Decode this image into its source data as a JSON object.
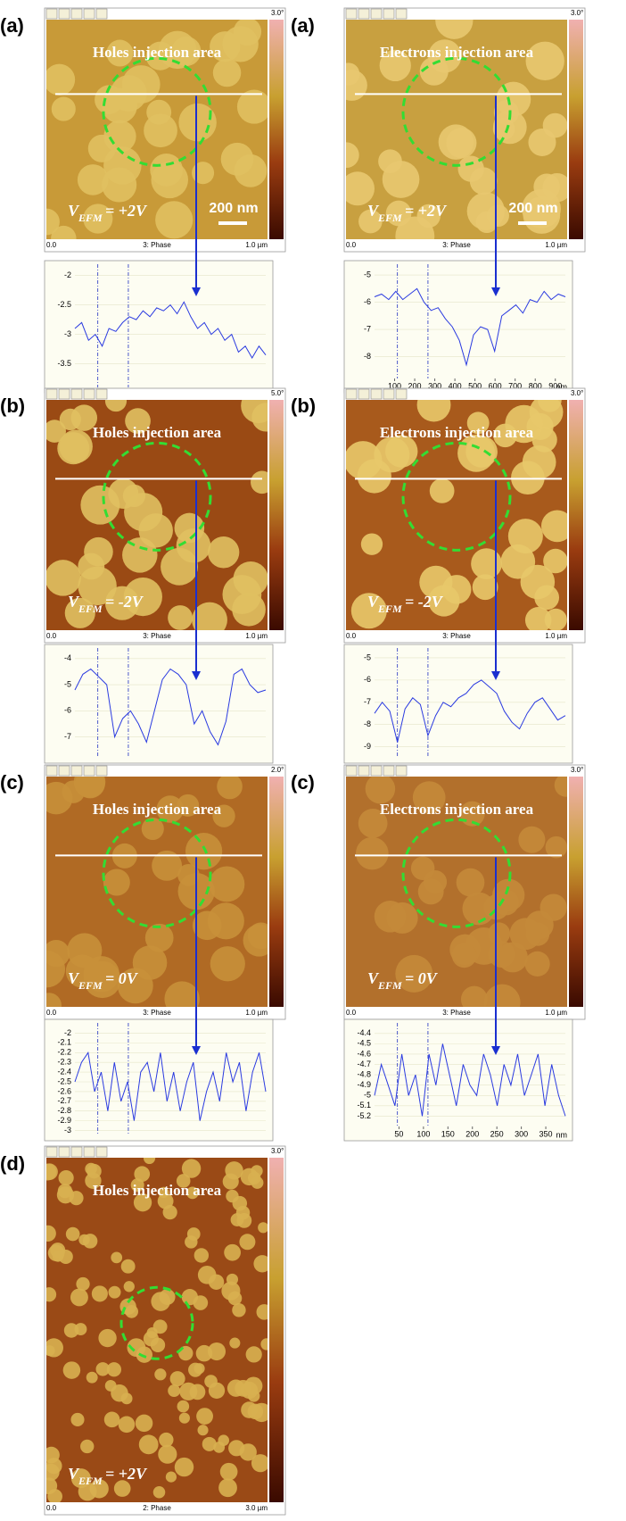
{
  "panels": [
    {
      "label": "(a)",
      "colorbar_max": "3.0°",
      "strip": {
        "left": "0.0",
        "center": "3: Phase",
        "right": "1.0 µm"
      },
      "annotation": "Holes injection area",
      "voltage": {
        "symbol": "V",
        "subscript": "EFM",
        "value": "= +2V"
      },
      "scale_bar": "200 nm",
      "profile": {
        "ylim": [
          -3.9,
          -1.9
        ],
        "yticks": [
          -2,
          -2.5,
          -3,
          -3.5
        ],
        "values": [
          -2.9,
          -2.8,
          -3.1,
          -3.0,
          -3.2,
          -2.9,
          -2.95,
          -2.8,
          -2.7,
          -2.75,
          -2.6,
          -2.7,
          -2.55,
          -2.6,
          -2.5,
          -2.65,
          -2.45,
          -2.7,
          -2.9,
          -2.8,
          -3.0,
          -2.9,
          -3.1,
          -3.0,
          -3.3,
          -3.2,
          -3.4,
          -3.2,
          -3.35
        ]
      }
    },
    {
      "label": "(a)",
      "colorbar_max": "3.0°",
      "strip": {
        "left": "0.0",
        "center": "3: Phase",
        "right": "1.0 µm"
      },
      "annotation": "Electrons injection area",
      "voltage": {
        "symbol": "V",
        "subscript": "EFM",
        "value": "= +2V"
      },
      "scale_bar": "200 nm",
      "profile": {
        "ylim": [
          -8.8,
          -4.8
        ],
        "yticks": [
          -5,
          -6,
          -7,
          -8
        ],
        "xlim": [
          0,
          950
        ],
        "xticks": [
          100,
          200,
          300,
          400,
          500,
          600,
          700,
          800,
          900
        ],
        "x_unit": "nm",
        "values": [
          -5.8,
          -5.7,
          -5.9,
          -5.6,
          -5.9,
          -5.7,
          -5.5,
          -6.0,
          -6.3,
          -6.2,
          -6.6,
          -6.9,
          -7.4,
          -8.3,
          -7.2,
          -6.9,
          -7.0,
          -7.8,
          -6.5,
          -6.3,
          -6.1,
          -6.4,
          -5.9,
          -6.0,
          -5.6,
          -5.9,
          -5.7,
          -5.8
        ]
      }
    },
    {
      "label": "(b)",
      "colorbar_max": "5.0°",
      "strip": {
        "left": "0.0",
        "center": "3: Phase",
        "right": "1.0 µm"
      },
      "annotation": "Holes injection area",
      "voltage": {
        "symbol": "V",
        "subscript": "EFM",
        "value": "= -2V"
      },
      "profile": {
        "ylim": [
          -7.8,
          -3.8
        ],
        "yticks": [
          -4,
          -5,
          -6,
          -7
        ],
        "values": [
          -5.2,
          -4.6,
          -4.4,
          -4.7,
          -5.0,
          -7.0,
          -6.3,
          -6.0,
          -6.5,
          -7.2,
          -6.0,
          -4.8,
          -4.4,
          -4.6,
          -5.0,
          -6.5,
          -6.0,
          -6.8,
          -7.3,
          -6.4,
          -4.6,
          -4.4,
          -5.0,
          -5.3,
          -5.2
        ]
      }
    },
    {
      "label": "(b)",
      "colorbar_max": "3.0°",
      "strip": {
        "left": "0.0",
        "center": "3: Phase",
        "right": "1.0 µm"
      },
      "annotation": "Electrons injection area",
      "voltage": {
        "symbol": "V",
        "subscript": "EFM",
        "value": "= -2V"
      },
      "profile": {
        "ylim": [
          -9.5,
          -4.8
        ],
        "yticks": [
          -5,
          -6,
          -7,
          -8,
          -9
        ],
        "values": [
          -7.5,
          -7.0,
          -7.4,
          -8.8,
          -7.3,
          -6.8,
          -7.1,
          -8.5,
          -7.6,
          -7.0,
          -7.2,
          -6.8,
          -6.6,
          -6.2,
          -6.0,
          -6.3,
          -6.6,
          -7.4,
          -7.9,
          -8.2,
          -7.5,
          -7.0,
          -6.8,
          -7.3,
          -7.8,
          -7.6
        ]
      }
    },
    {
      "label": "(c)",
      "colorbar_max": "2.0°",
      "strip": {
        "left": "0.0",
        "center": "3: Phase",
        "right": "1.0 µm"
      },
      "annotation": "Holes injection area",
      "voltage": {
        "symbol": "V",
        "subscript": "EFM",
        "value": "= 0V"
      },
      "profile": {
        "ylim": [
          -3.05,
          -1.95
        ],
        "yticks": [
          -2,
          -2.1,
          -2.2,
          -2.3,
          -2.4,
          -2.5,
          -2.6,
          -2.7,
          -2.8,
          -2.9,
          -3
        ],
        "values": [
          -2.5,
          -2.3,
          -2.2,
          -2.6,
          -2.4,
          -2.8,
          -2.3,
          -2.7,
          -2.5,
          -2.9,
          -2.4,
          -2.3,
          -2.6,
          -2.2,
          -2.7,
          -2.4,
          -2.8,
          -2.5,
          -2.3,
          -2.9,
          -2.6,
          -2.4,
          -2.7,
          -2.2,
          -2.5,
          -2.3,
          -2.8,
          -2.4,
          -2.2,
          -2.6
        ]
      }
    },
    {
      "label": "(c)",
      "colorbar_max": "3.0°",
      "strip": {
        "left": "0.0",
        "center": "3: Phase",
        "right": "1.0 µm"
      },
      "annotation": "Electrons injection area",
      "voltage": {
        "symbol": "V",
        "subscript": "EFM",
        "value": "= 0V"
      },
      "profile": {
        "ylim": [
          -5.3,
          -4.35
        ],
        "yticks": [
          -4.4,
          -4.5,
          -4.6,
          -4.7,
          -4.8,
          -4.9,
          -5,
          -5.1,
          -5.2
        ],
        "xlim": [
          0,
          390
        ],
        "xticks": [
          50,
          100,
          150,
          200,
          250,
          300,
          350
        ],
        "x_unit": "nm",
        "values": [
          -5.0,
          -4.7,
          -4.9,
          -5.1,
          -4.6,
          -5.0,
          -4.8,
          -5.2,
          -4.6,
          -4.9,
          -4.5,
          -4.8,
          -5.1,
          -4.7,
          -4.9,
          -5.0,
          -4.6,
          -4.8,
          -5.1,
          -4.7,
          -4.9,
          -4.6,
          -5.0,
          -4.8,
          -4.6,
          -5.1,
          -4.7,
          -5.0,
          -5.2
        ]
      }
    },
    {
      "label": "(d)",
      "colorbar_max": "3.0°",
      "strip": {
        "left": "0.0",
        "center": "2: Phase",
        "right": "3.0 µm"
      },
      "annotation": "Holes injection area",
      "voltage": {
        "symbol": "V",
        "subscript": "EFM",
        "value": "= +2V"
      }
    }
  ]
}
